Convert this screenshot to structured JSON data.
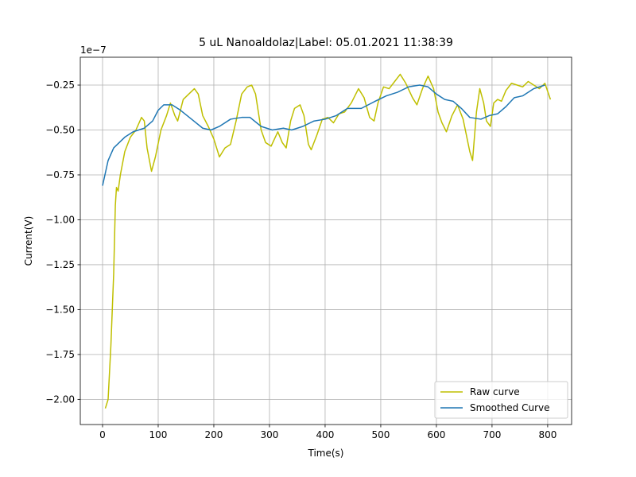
{
  "chart_data": {
    "type": "line",
    "title": "5 uL Nanoaldolaz|Label: 05.01.2021 11:38:39",
    "xlabel": "Time(s)",
    "ylabel": "Current(V)",
    "y_offset_label": "1e−7",
    "xlim": [
      -40,
      843
    ],
    "ylim": [
      -2.14,
      -0.095
    ],
    "xticks": [
      0,
      100,
      200,
      300,
      400,
      500,
      600,
      700,
      800
    ],
    "yticks": [
      {
        "value": -2.0,
        "label": "−2.00"
      },
      {
        "value": -1.75,
        "label": "−1.75"
      },
      {
        "value": -1.5,
        "label": "−1.50"
      },
      {
        "value": -1.25,
        "label": "−1.25"
      },
      {
        "value": -1.0,
        "label": "−1.00"
      },
      {
        "value": -0.75,
        "label": "−0.75"
      },
      {
        "value": -0.5,
        "label": "−0.50"
      },
      {
        "value": -0.25,
        "label": "−0.25"
      }
    ],
    "grid": true,
    "legend": "lower right",
    "series": [
      {
        "name": "Raw curve",
        "color": "#bfbf00",
        "x": [
          5,
          10,
          15,
          20,
          23,
          25,
          28,
          32,
          40,
          50,
          60,
          70,
          75,
          80,
          88,
          95,
          105,
          115,
          122,
          130,
          135,
          145,
          155,
          165,
          172,
          180,
          190,
          200,
          210,
          220,
          230,
          240,
          250,
          260,
          268,
          275,
          285,
          293,
          303,
          315,
          323,
          330,
          338,
          345,
          355,
          362,
          370,
          375,
          385,
          395,
          405,
          415,
          425,
          435,
          447,
          460,
          470,
          480,
          488,
          495,
          505,
          515,
          525,
          535,
          545,
          557,
          565,
          575,
          585,
          595,
          603,
          610,
          618,
          628,
          638,
          648,
          660,
          665,
          672,
          678,
          685,
          690,
          697,
          703,
          710,
          717,
          725,
          735,
          745,
          755,
          765,
          775,
          785,
          795,
          805
        ],
        "values": [
          -2.05,
          -2.0,
          -1.7,
          -1.3,
          -0.92,
          -0.82,
          -0.84,
          -0.75,
          -0.62,
          -0.54,
          -0.5,
          -0.43,
          -0.45,
          -0.6,
          -0.73,
          -0.65,
          -0.5,
          -0.42,
          -0.35,
          -0.42,
          -0.45,
          -0.33,
          -0.3,
          -0.27,
          -0.3,
          -0.42,
          -0.48,
          -0.55,
          -0.65,
          -0.6,
          -0.58,
          -0.45,
          -0.3,
          -0.26,
          -0.25,
          -0.3,
          -0.5,
          -0.57,
          -0.59,
          -0.51,
          -0.57,
          -0.6,
          -0.45,
          -0.38,
          -0.36,
          -0.42,
          -0.58,
          -0.61,
          -0.53,
          -0.44,
          -0.43,
          -0.46,
          -0.41,
          -0.4,
          -0.35,
          -0.27,
          -0.32,
          -0.43,
          -0.45,
          -0.35,
          -0.26,
          -0.27,
          -0.23,
          -0.19,
          -0.24,
          -0.32,
          -0.36,
          -0.27,
          -0.2,
          -0.27,
          -0.4,
          -0.46,
          -0.51,
          -0.42,
          -0.36,
          -0.44,
          -0.62,
          -0.67,
          -0.4,
          -0.27,
          -0.35,
          -0.45,
          -0.48,
          -0.35,
          -0.33,
          -0.34,
          -0.28,
          -0.24,
          -0.25,
          -0.26,
          -0.23,
          -0.25,
          -0.27,
          -0.24,
          -0.33
        ]
      },
      {
        "name": "Smoothed Curve",
        "color": "#1f77b4",
        "x": [
          0,
          10,
          20,
          40,
          55,
          75,
          90,
          100,
          110,
          125,
          140,
          160,
          180,
          195,
          210,
          230,
          250,
          265,
          285,
          305,
          325,
          340,
          360,
          380,
          400,
          420,
          440,
          465,
          490,
          510,
          530,
          550,
          570,
          585,
          600,
          615,
          630,
          645,
          660,
          680,
          695,
          710,
          725,
          740,
          755,
          775,
          795
        ],
        "values": [
          -0.81,
          -0.67,
          -0.6,
          -0.54,
          -0.51,
          -0.49,
          -0.45,
          -0.39,
          -0.36,
          -0.36,
          -0.39,
          -0.44,
          -0.49,
          -0.5,
          -0.48,
          -0.44,
          -0.43,
          -0.43,
          -0.48,
          -0.5,
          -0.49,
          -0.5,
          -0.48,
          -0.45,
          -0.44,
          -0.42,
          -0.38,
          -0.38,
          -0.34,
          -0.31,
          -0.29,
          -0.26,
          -0.25,
          -0.26,
          -0.3,
          -0.33,
          -0.34,
          -0.38,
          -0.43,
          -0.44,
          -0.42,
          -0.41,
          -0.37,
          -0.32,
          -0.31,
          -0.27,
          -0.25
        ]
      }
    ]
  }
}
